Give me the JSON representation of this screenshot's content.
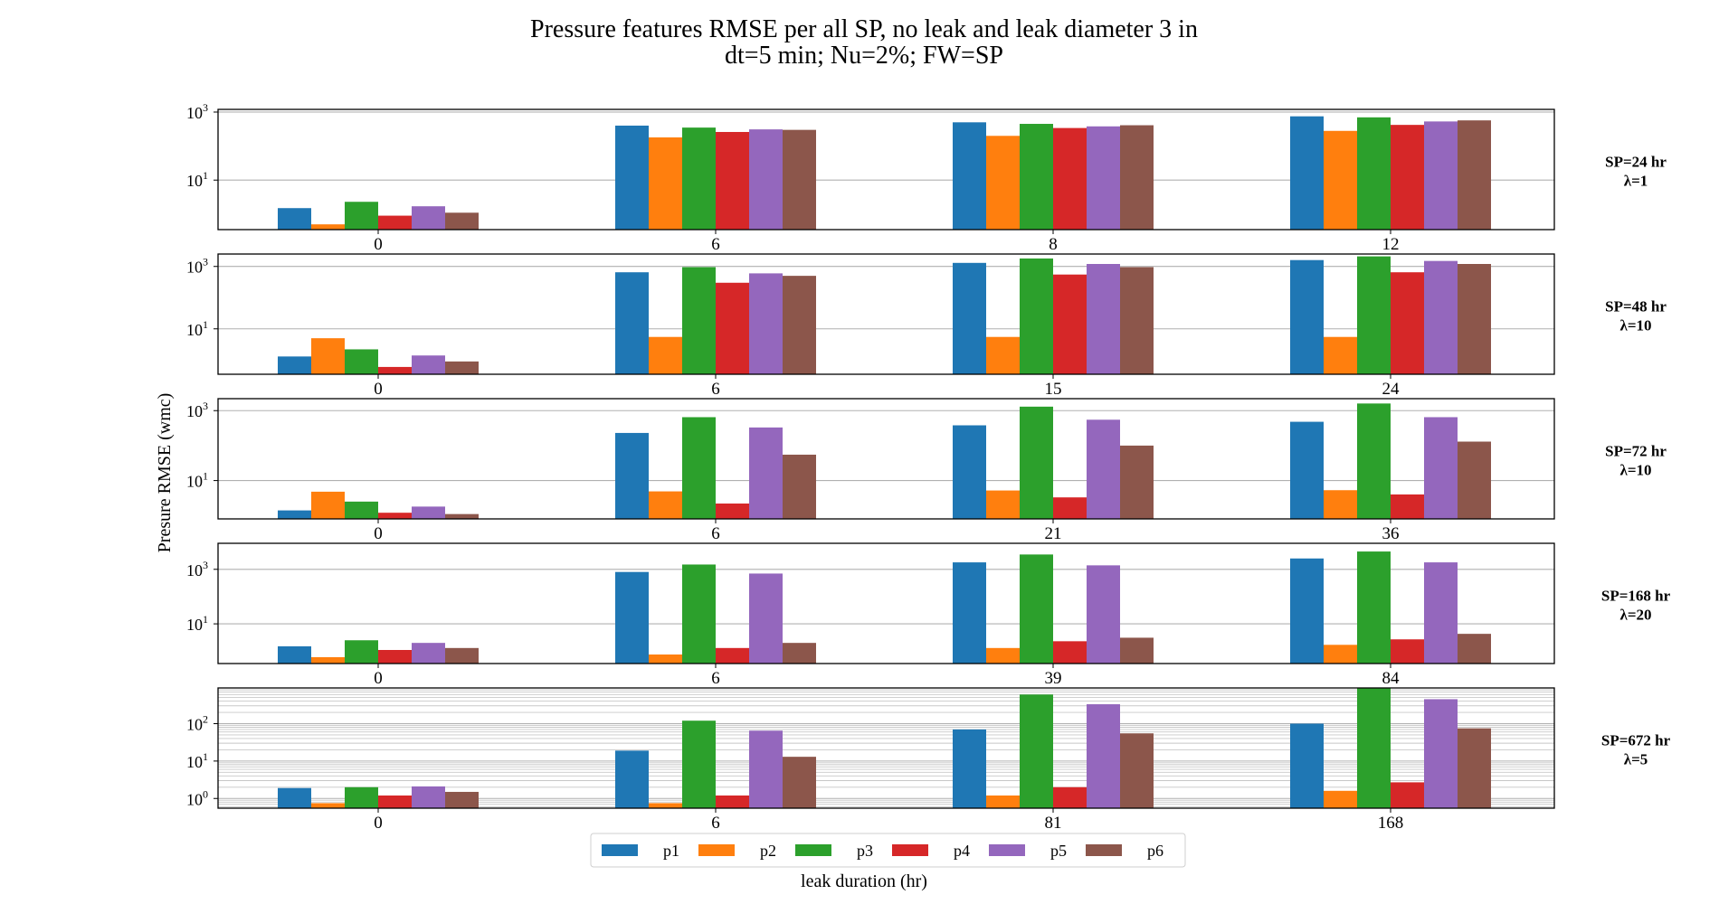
{
  "chart_data": {
    "type": "bar",
    "title": "Pressure features RMSE per all SP, no leak and leak diameter 3 in",
    "subtitle": "dt=5 min; Nu=2%; FW=SP",
    "xlabel": "leak duration (hr)",
    "ylabel": "Presure RMSE (wmc)",
    "yscale": "log",
    "grid": "y (major, light gray)",
    "legend_position": "bottom-center",
    "series_names": [
      "p1",
      "p2",
      "p3",
      "p4",
      "p5",
      "p6"
    ],
    "colors": [
      "#1f77b4",
      "#ff7f0e",
      "#2ca02c",
      "#d62728",
      "#9467bd",
      "#8c564b"
    ],
    "panels": [
      {
        "row_label_1": "SP=24 hr",
        "row_label_2": "λ=1",
        "ylim": [
          0.35,
          1200
        ],
        "ytick_labels": [
          {
            "base": "10",
            "exp": "1"
          },
          {
            "base": "10",
            "exp": "3"
          }
        ],
        "categories": [
          "0",
          "6",
          "8",
          "12"
        ],
        "series": [
          {
            "name": "p1",
            "values": [
              1.5,
              400,
              500,
              750
            ]
          },
          {
            "name": "p2",
            "values": [
              0.5,
              180,
              200,
              280
            ]
          },
          {
            "name": "p3",
            "values": [
              2.3,
              350,
              450,
              700
            ]
          },
          {
            "name": "p4",
            "values": [
              0.9,
              260,
              340,
              420
            ]
          },
          {
            "name": "p5",
            "values": [
              1.7,
              310,
              380,
              530
            ]
          },
          {
            "name": "p6",
            "values": [
              1.1,
              300,
              410,
              570
            ]
          }
        ]
      },
      {
        "row_label_1": "SP=48 hr",
        "row_label_2": "λ=10",
        "ylim": [
          0.35,
          2500
        ],
        "ytick_labels": [
          {
            "base": "10",
            "exp": "1"
          },
          {
            "base": "10",
            "exp": "3"
          }
        ],
        "categories": [
          "0",
          "6",
          "15",
          "24"
        ],
        "series": [
          {
            "name": "p1",
            "values": [
              1.3,
              650,
              1300,
              1600
            ]
          },
          {
            "name": "p2",
            "values": [
              5.0,
              5.5,
              5.5,
              5.5
            ]
          },
          {
            "name": "p3",
            "values": [
              2.2,
              950,
              1800,
              2100
            ]
          },
          {
            "name": "p4",
            "values": [
              0.6,
              300,
              550,
              650
            ]
          },
          {
            "name": "p5",
            "values": [
              1.4,
              600,
              1200,
              1500
            ]
          },
          {
            "name": "p6",
            "values": [
              0.9,
              500,
              950,
              1200
            ]
          }
        ]
      },
      {
        "row_label_1": "SP=72 hr",
        "row_label_2": "λ=10",
        "ylim": [
          0.8,
          2200
        ],
        "ytick_labels": [
          {
            "base": "10",
            "exp": "1"
          },
          {
            "base": "10",
            "exp": "3"
          }
        ],
        "categories": [
          "0",
          "6",
          "21",
          "36"
        ],
        "series": [
          {
            "name": "p1",
            "values": [
              1.4,
              230,
              380,
              480
            ]
          },
          {
            "name": "p2",
            "values": [
              4.8,
              4.9,
              5.2,
              5.3
            ]
          },
          {
            "name": "p3",
            "values": [
              2.5,
              650,
              1300,
              1600
            ]
          },
          {
            "name": "p4",
            "values": [
              1.2,
              2.2,
              3.3,
              4.0
            ]
          },
          {
            "name": "p5",
            "values": [
              1.8,
              330,
              550,
              650
            ]
          },
          {
            "name": "p6",
            "values": [
              1.1,
              55,
              100,
              130
            ]
          }
        ]
      },
      {
        "row_label_1": "SP=168 hr",
        "row_label_2": "λ=20",
        "ylim": [
          0.35,
          9000
        ],
        "ytick_labels": [
          {
            "base": "10",
            "exp": "1"
          },
          {
            "base": "10",
            "exp": "3"
          }
        ],
        "categories": [
          "0",
          "6",
          "39",
          "84"
        ],
        "series": [
          {
            "name": "p1",
            "values": [
              1.5,
              800,
              1800,
              2500
            ]
          },
          {
            "name": "p2",
            "values": [
              0.6,
              0.75,
              1.3,
              1.7
            ]
          },
          {
            "name": "p3",
            "values": [
              2.5,
              1500,
              3500,
              4500
            ]
          },
          {
            "name": "p4",
            "values": [
              1.1,
              1.3,
              2.3,
              2.7
            ]
          },
          {
            "name": "p5",
            "values": [
              2.0,
              700,
              1400,
              1800
            ]
          },
          {
            "name": "p6",
            "values": [
              1.3,
              2.0,
              3.1,
              4.3
            ]
          }
        ]
      },
      {
        "row_label_1": "SP=672 hr",
        "row_label_2": "λ=5",
        "ylim": [
          0.55,
          900
        ],
        "ytick_labels": [
          {
            "base": "10",
            "exp": "0"
          },
          {
            "base": "10",
            "exp": "1"
          },
          {
            "base": "10",
            "exp": "2"
          }
        ],
        "categories": [
          "0",
          "6",
          "81",
          "168"
        ],
        "series": [
          {
            "name": "p1",
            "values": [
              1.9,
              19,
              70,
              100
            ]
          },
          {
            "name": "p2",
            "values": [
              0.75,
              0.75,
              1.2,
              1.6
            ]
          },
          {
            "name": "p3",
            "values": [
              2.0,
              120,
              600,
              900
            ]
          },
          {
            "name": "p4",
            "values": [
              1.2,
              1.2,
              2.0,
              2.7
            ]
          },
          {
            "name": "p5",
            "values": [
              2.1,
              65,
              330,
              450
            ]
          },
          {
            "name": "p6",
            "values": [
              1.5,
              13,
              55,
              75
            ]
          }
        ]
      }
    ]
  }
}
